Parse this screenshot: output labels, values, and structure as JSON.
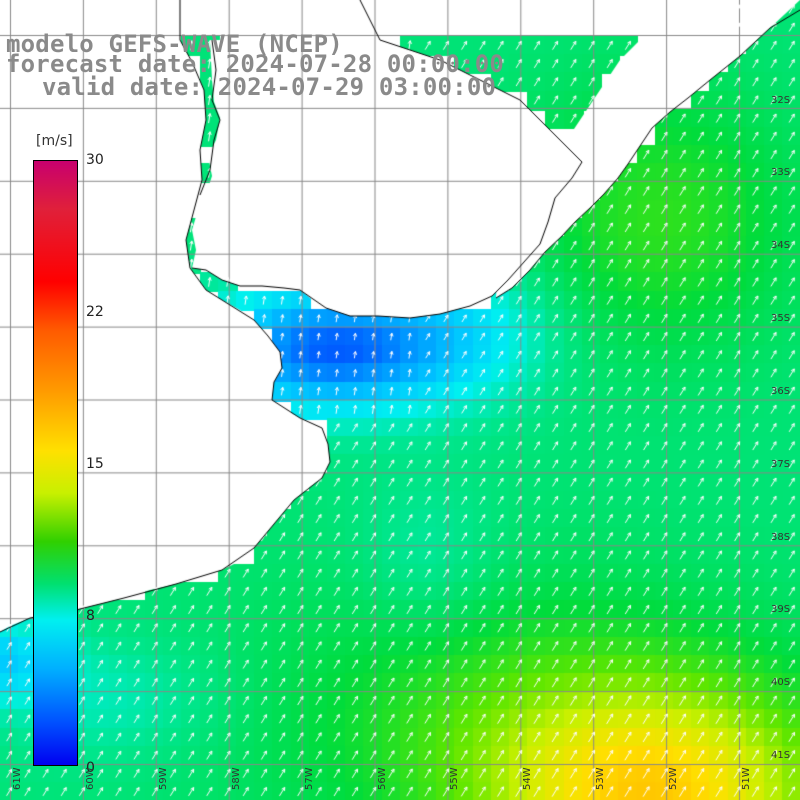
{
  "title": {
    "line1": "modelo GEFS-WAVE (NCEP)",
    "line2": "forecast date: 2024-07-28 00:00:00",
    "line3": "valid date: 2024-07-29 03:00:00"
  },
  "colorbar": {
    "unit": "[m/s]",
    "ticks": [
      "30",
      "22",
      "15",
      "8",
      "0"
    ],
    "colors": [
      "#c8006e",
      "#ff0000",
      "#ff9a00",
      "#ffe000",
      "#30d000",
      "#00f0f0",
      "#0050ff",
      "#0000f0"
    ]
  },
  "axes": {
    "lat_labels": [
      "32S",
      "33S",
      "34S",
      "35S",
      "36S",
      "37S",
      "38S",
      "39S",
      "40S",
      "41S"
    ],
    "lon_labels": [
      "61W",
      "60W",
      "59W",
      "58W",
      "57W",
      "56W",
      "55W",
      "54W",
      "53W",
      "52W",
      "51W"
    ]
  },
  "map": {
    "land_color": "#ffffff",
    "coastline_color": "#000000",
    "grid_color": "#888888",
    "arrow_color": "#ffffff"
  }
}
